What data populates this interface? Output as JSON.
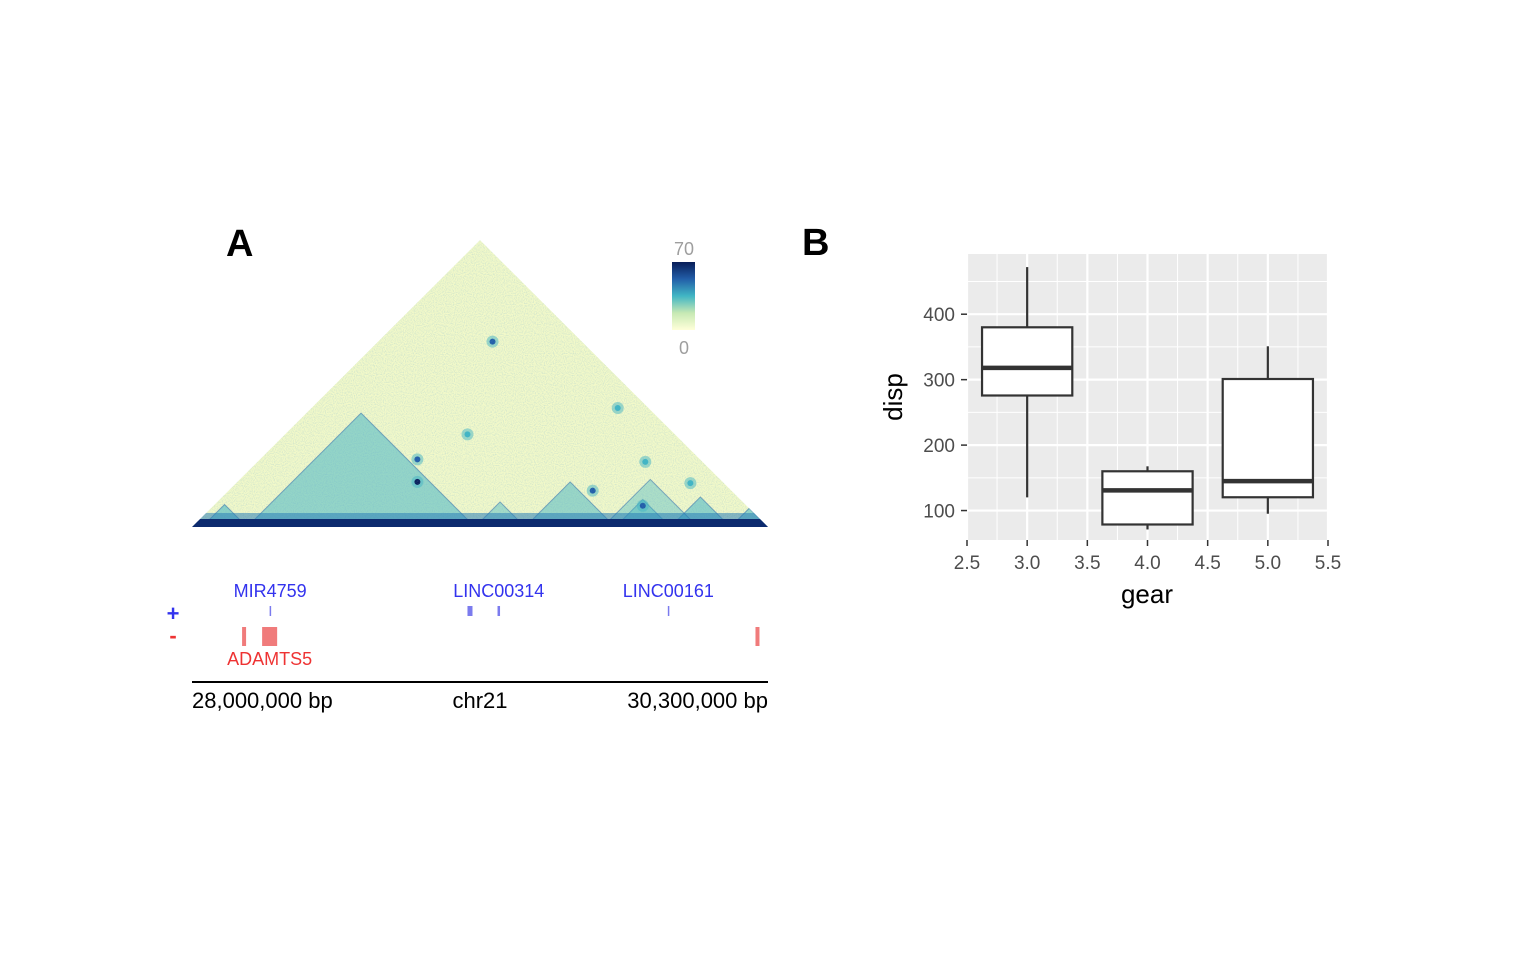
{
  "panels": {
    "a": {
      "label": "A"
    },
    "b": {
      "label": "B"
    }
  },
  "chart_data": [
    {
      "panel": "A",
      "type": "heatmap",
      "colorbar": {
        "max_label": "70",
        "min_label": "0",
        "range": [
          0,
          70
        ],
        "colors": [
          "#ffffd9",
          "#c7e9b4",
          "#41b6c4",
          "#225ea8",
          "#081d58"
        ]
      },
      "region": {
        "start": 28000000,
        "end": 30300000
      },
      "dots": [
        {
          "x": 28900000,
          "span": 360000,
          "value": 62
        },
        {
          "x": 29100000,
          "span": 740000,
          "value": 40
        },
        {
          "x": 29200000,
          "span": 1480000,
          "value": 50
        },
        {
          "x": 28900000,
          "span": 540000,
          "value": 45
        },
        {
          "x": 29600000,
          "span": 290000,
          "value": 50
        },
        {
          "x": 29800000,
          "span": 170000,
          "value": 55
        },
        {
          "x": 29810000,
          "span": 520000,
          "value": 35
        },
        {
          "x": 29990000,
          "span": 350000,
          "value": 40
        },
        {
          "x": 29700000,
          "span": 950000,
          "value": 38
        }
      ],
      "domains": [
        {
          "start": 28040000,
          "end": 28220000,
          "intensity": 0.6
        },
        {
          "start": 28220000,
          "end": 29130000,
          "intensity": 0.5
        },
        {
          "start": 29130000,
          "end": 29330000,
          "intensity": 0.35
        },
        {
          "start": 29330000,
          "end": 29690000,
          "intensity": 0.45
        },
        {
          "start": 29690000,
          "end": 29910000,
          "intensity": 0.4
        },
        {
          "start": 29910000,
          "end": 30150000,
          "intensity": 0.55
        },
        {
          "start": 30150000,
          "end": 30300000,
          "intensity": 0.5
        },
        {
          "start": 29640000,
          "end": 30020000,
          "intensity": 0.25
        }
      ],
      "strands": {
        "plus": "+",
        "minus": "-"
      },
      "genes_plus": [
        {
          "name": "MIR4759",
          "start": 28310000,
          "end": 28314000,
          "label": true
        },
        {
          "name": "",
          "start": 29100000,
          "end": 29120000,
          "label": false
        },
        {
          "name": "LINC00314",
          "start": 29220000,
          "end": 29230000,
          "label": true
        },
        {
          "name": "LINC00161",
          "start": 29900000,
          "end": 29904000,
          "label": true
        }
      ],
      "genes_minus": [
        {
          "name": "",
          "start": 28200000,
          "end": 28215000,
          "label": false
        },
        {
          "name": "ADAMTS5",
          "start": 28280000,
          "end": 28340000,
          "label": true
        },
        {
          "name": "",
          "start": 30250000,
          "end": 30262000,
          "label": false
        }
      ],
      "axis": {
        "left_label": "28,000,000 bp",
        "center_label": "chr21",
        "right_label": "30,300,000 bp"
      },
      "colors": {
        "plus": "#3333ee",
        "minus": "#ee3333",
        "plus_gene": "#7b7bee",
        "minus_gene": "#f07b7b"
      }
    },
    {
      "panel": "B",
      "type": "boxplot",
      "xlabel": "gear",
      "ylabel": "disp",
      "xlim": [
        2.5,
        5.5
      ],
      "ylim": [
        55,
        492
      ],
      "xticks": [
        2.5,
        3.0,
        3.5,
        4.0,
        4.5,
        5.0,
        5.5
      ],
      "xtick_labels": [
        "2.5",
        "3.0",
        "3.5",
        "4.0",
        "4.5",
        "5.0",
        "5.5"
      ],
      "yticks": [
        100,
        200,
        300,
        400
      ],
      "ytick_labels": [
        "100",
        "200",
        "300",
        "400"
      ],
      "grid": true,
      "series": [
        {
          "x": 3,
          "min": 120.1,
          "q1": 275.8,
          "median": 318,
          "q3": 380,
          "max": 472
        },
        {
          "x": 4,
          "min": 71.1,
          "q1": 78.7,
          "median": 130.9,
          "q3": 160,
          "max": 167.6
        },
        {
          "x": 5,
          "min": 95.1,
          "q1": 120.3,
          "median": 145,
          "q3": 301,
          "max": 351
        }
      ],
      "colors": {
        "panel_bg": "#ebebeb",
        "grid": "#ffffff",
        "box_stroke": "#333333",
        "box_fill": "#ffffff"
      }
    }
  ]
}
